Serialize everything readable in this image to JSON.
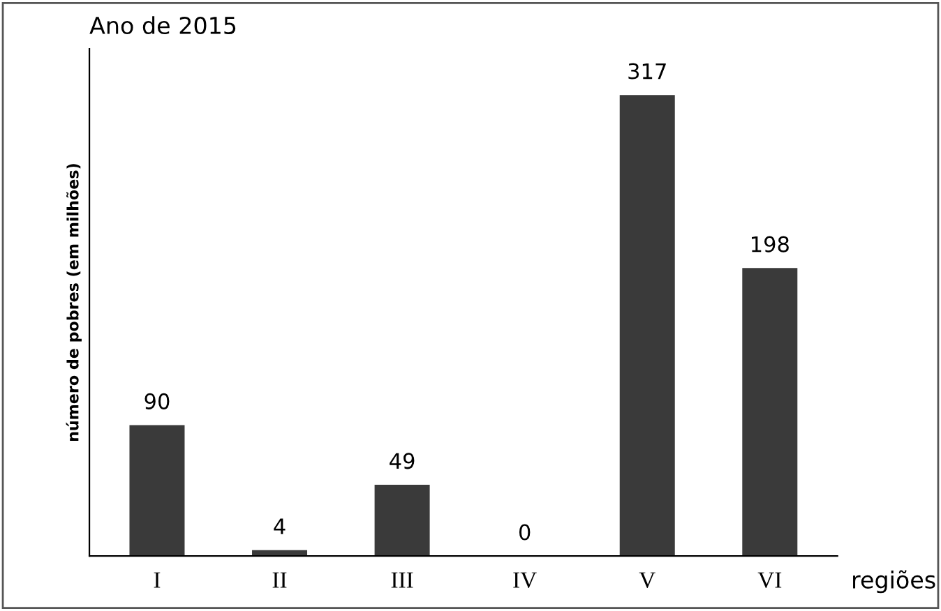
{
  "chart_data": {
    "type": "bar",
    "title": "Ano de 2015",
    "xlabel": "regiões",
    "ylabel": "número de pobres (em milhões)",
    "categories": [
      "I",
      "II",
      "III",
      "IV",
      "V",
      "VI"
    ],
    "values": [
      90,
      4,
      49,
      0,
      317,
      198
    ],
    "color": "#3a3a3a",
    "data_labels": true,
    "grid": false,
    "legend": false,
    "tick_labels": "x"
  }
}
